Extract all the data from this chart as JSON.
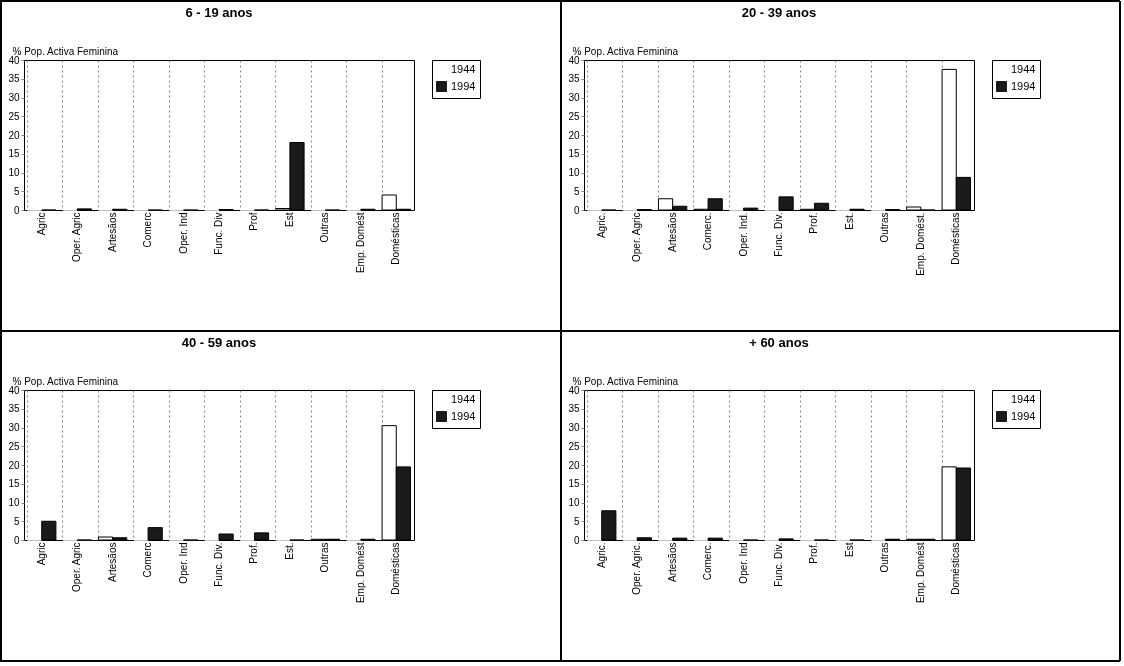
{
  "chart_data": [
    {
      "type": "bar",
      "title": "6 - 19 anos",
      "ylabel": "% Pop. Activa Feminina",
      "categories": [
        "Agric",
        "Oper. Agric",
        "Artesãos",
        "Comerc",
        "Oper. Ind",
        "Func. Div",
        "Prof",
        "Est",
        "Outras",
        "Emp. Domést",
        "Domésticas"
      ],
      "series": [
        {
          "name": "1944",
          "color": "#ffffff",
          "values": [
            0,
            0,
            0,
            0,
            0,
            0,
            0,
            0.4,
            0,
            0,
            4
          ]
        },
        {
          "name": "1994",
          "color": "#1a1a1a",
          "values": [
            0,
            0.3,
            0.2,
            0,
            0,
            0.1,
            0,
            18,
            0,
            0.2,
            0.2
          ]
        }
      ],
      "ylim": [
        0,
        40
      ],
      "yticks": [
        0,
        5,
        10,
        15,
        20,
        25,
        30,
        35,
        40
      ],
      "grid": "x",
      "legend": "right"
    },
    {
      "type": "bar",
      "title": "20 - 39 anos",
      "ylabel": "% Pop. Activa Feminina",
      "categories": [
        "Agric.",
        "Oper. Agric",
        "Artesãos",
        "Comerc.",
        "Oper. Ind.",
        "Func. Div.",
        "Prof.",
        "Est.",
        "Outras",
        "Emp. Domést.",
        "Domésticas"
      ],
      "series": [
        {
          "name": "1944",
          "color": "#ffffff",
          "values": [
            0,
            0,
            3,
            0.2,
            0,
            0,
            0.2,
            0,
            0,
            0.8,
            37.5
          ]
        },
        {
          "name": "1994",
          "color": "#1a1a1a",
          "values": [
            0,
            0.1,
            1,
            3,
            0.5,
            3.5,
            1.8,
            0.2,
            0.1,
            0,
            8.7
          ]
        }
      ],
      "ylim": [
        0,
        40
      ],
      "yticks": [
        0,
        5,
        10,
        15,
        20,
        25,
        30,
        35,
        40
      ],
      "grid": "x",
      "legend": "right"
    },
    {
      "type": "bar",
      "title": "40 - 59 anos",
      "ylabel": "% Pop. Activa Feminina",
      "categories": [
        "Agric",
        "Oper. Agric",
        "Artesãos",
        "Comerc",
        "Oper. Ind",
        "Func. Div.",
        "Prof.",
        "Est.",
        "Outras",
        "Emp. Domést",
        "Domésticas"
      ],
      "series": [
        {
          "name": "1944",
          "color": "#ffffff",
          "values": [
            0,
            0,
            0.8,
            0,
            0,
            0,
            0,
            0,
            0.2,
            0,
            30.5
          ]
        },
        {
          "name": "1994",
          "color": "#1a1a1a",
          "values": [
            5,
            0,
            0.6,
            3.3,
            0,
            1.6,
            1.9,
            0,
            0.2,
            0.2,
            19.5
          ]
        }
      ],
      "ylim": [
        0,
        40
      ],
      "yticks": [
        0,
        5,
        10,
        15,
        20,
        25,
        30,
        35,
        40
      ],
      "grid": "x",
      "legend": "right"
    },
    {
      "type": "bar",
      "title": "+ 60 anos",
      "ylabel": "% Pop. Activa Feminina",
      "categories": [
        "Agric.",
        "Oper. Agric.",
        "Artesãos",
        "Comerc.",
        "Oper. Ind",
        "Func. Div.",
        "Prof.",
        "Est",
        "Outras",
        "Emp. Domést",
        "Domésticas"
      ],
      "series": [
        {
          "name": "1944",
          "color": "#ffffff",
          "values": [
            0,
            0,
            0,
            0,
            0,
            0,
            0,
            0,
            0,
            0.2,
            19.5
          ]
        },
        {
          "name": "1994",
          "color": "#1a1a1a",
          "values": [
            7.8,
            0.6,
            0.5,
            0.5,
            0,
            0.3,
            0,
            0,
            0.2,
            0.2,
            19.2
          ]
        }
      ],
      "ylim": [
        0,
        40
      ],
      "yticks": [
        0,
        5,
        10,
        15,
        20,
        25,
        30,
        35,
        40
      ],
      "grid": "x",
      "legend": "right"
    }
  ]
}
